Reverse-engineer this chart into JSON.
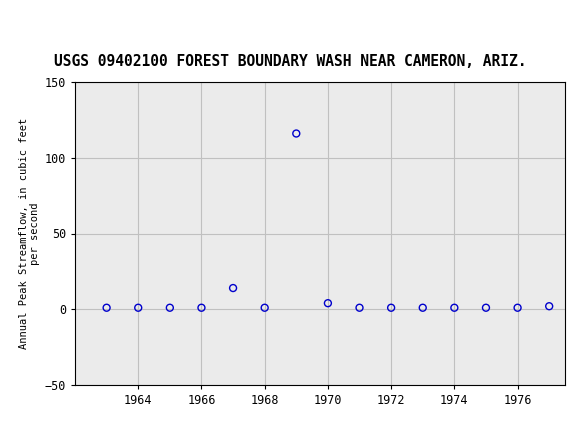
{
  "title": "USGS 09402100 FOREST BOUNDARY WASH NEAR CAMERON, ARIZ.",
  "ylabel": "Annual Peak Streamflow, in cubic feet\nper second",
  "years": [
    1963,
    1964,
    1965,
    1966,
    1967,
    1968,
    1969,
    1970,
    1971,
    1972,
    1973,
    1974,
    1975,
    1976,
    1977
  ],
  "values": [
    1,
    1,
    1,
    1,
    14,
    1,
    116,
    4,
    1,
    1,
    1,
    1,
    1,
    1,
    2
  ],
  "xlim": [
    1962.0,
    1977.5
  ],
  "ylim": [
    -50,
    150
  ],
  "yticks": [
    -50,
    0,
    50,
    100,
    150
  ],
  "xticks": [
    1964,
    1966,
    1968,
    1970,
    1972,
    1974,
    1976
  ],
  "marker_color": "#0000cc",
  "marker_size": 5,
  "grid_color": "#c0c0c0",
  "bg_color": "#ffffff",
  "plot_bg": "#ebebeb",
  "header_bg": "#1a6b3c",
  "title_fontsize": 10.5,
  "ylabel_fontsize": 7.5,
  "tick_fontsize": 8.5
}
